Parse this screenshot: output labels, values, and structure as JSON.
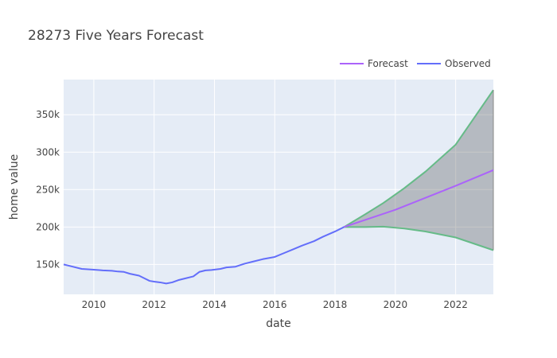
{
  "chart_data": {
    "type": "line",
    "title": "28273 Five Years Forecast",
    "xlabel": "date",
    "ylabel": "home value",
    "xlim": [
      2009.0,
      2023.25
    ],
    "ylim": [
      110000,
      397000
    ],
    "x_ticks": [
      2010,
      2012,
      2014,
      2016,
      2018,
      2020,
      2022
    ],
    "y_ticks": [
      150000,
      200000,
      250000,
      300000,
      350000
    ],
    "y_tick_labels": [
      "150k",
      "200k",
      "250k",
      "300k",
      "350k"
    ],
    "grid": true,
    "legend_position": "top-right",
    "legend": [
      {
        "name": "Forecast",
        "color": "#ab63fa"
      },
      {
        "name": "Observed",
        "color": "#636efa"
      }
    ],
    "series": [
      {
        "name": "Observed",
        "color": "#636efa",
        "x": [
          2009.0,
          2009.3,
          2009.6,
          2010.0,
          2010.3,
          2010.6,
          2010.8,
          2011.0,
          2011.2,
          2011.5,
          2011.7,
          2011.85,
          2012.0,
          2012.2,
          2012.4,
          2012.6,
          2012.8,
          2013.0,
          2013.3,
          2013.5,
          2013.7,
          2013.9,
          2014.2,
          2014.4,
          2014.7,
          2015.0,
          2015.3,
          2015.6,
          2016.0,
          2016.3,
          2016.6,
          2016.9,
          2017.3,
          2017.6,
          2018.0,
          2018.3
        ],
        "y": [
          150000,
          147000,
          144000,
          143000,
          142000,
          141500,
          140500,
          140000,
          137500,
          135000,
          131000,
          128000,
          127000,
          126000,
          124500,
          126000,
          129000,
          131000,
          134000,
          140000,
          142000,
          142500,
          144000,
          146000,
          147000,
          151000,
          154000,
          157000,
          160000,
          165000,
          170000,
          175000,
          181000,
          187000,
          194000,
          200000
        ]
      },
      {
        "name": "Forecast",
        "color": "#ab63fa",
        "x": [
          2018.3,
          2020.0,
          2022.0,
          2023.25
        ],
        "y": [
          200000,
          223000,
          255000,
          276000
        ]
      }
    ],
    "confidence_band": {
      "color": "#66bb88",
      "fill": "rgba(68,68,68,0.3)",
      "x": [
        2018.3,
        2019.0,
        2019.6,
        2020.3,
        2021.0,
        2022.0,
        2023.25
      ],
      "upper": [
        200000,
        217000,
        232000,
        252000,
        274000,
        310000,
        383000
      ],
      "lower": [
        200000,
        200000,
        200500,
        198000,
        194000,
        186000,
        169000
      ]
    }
  }
}
